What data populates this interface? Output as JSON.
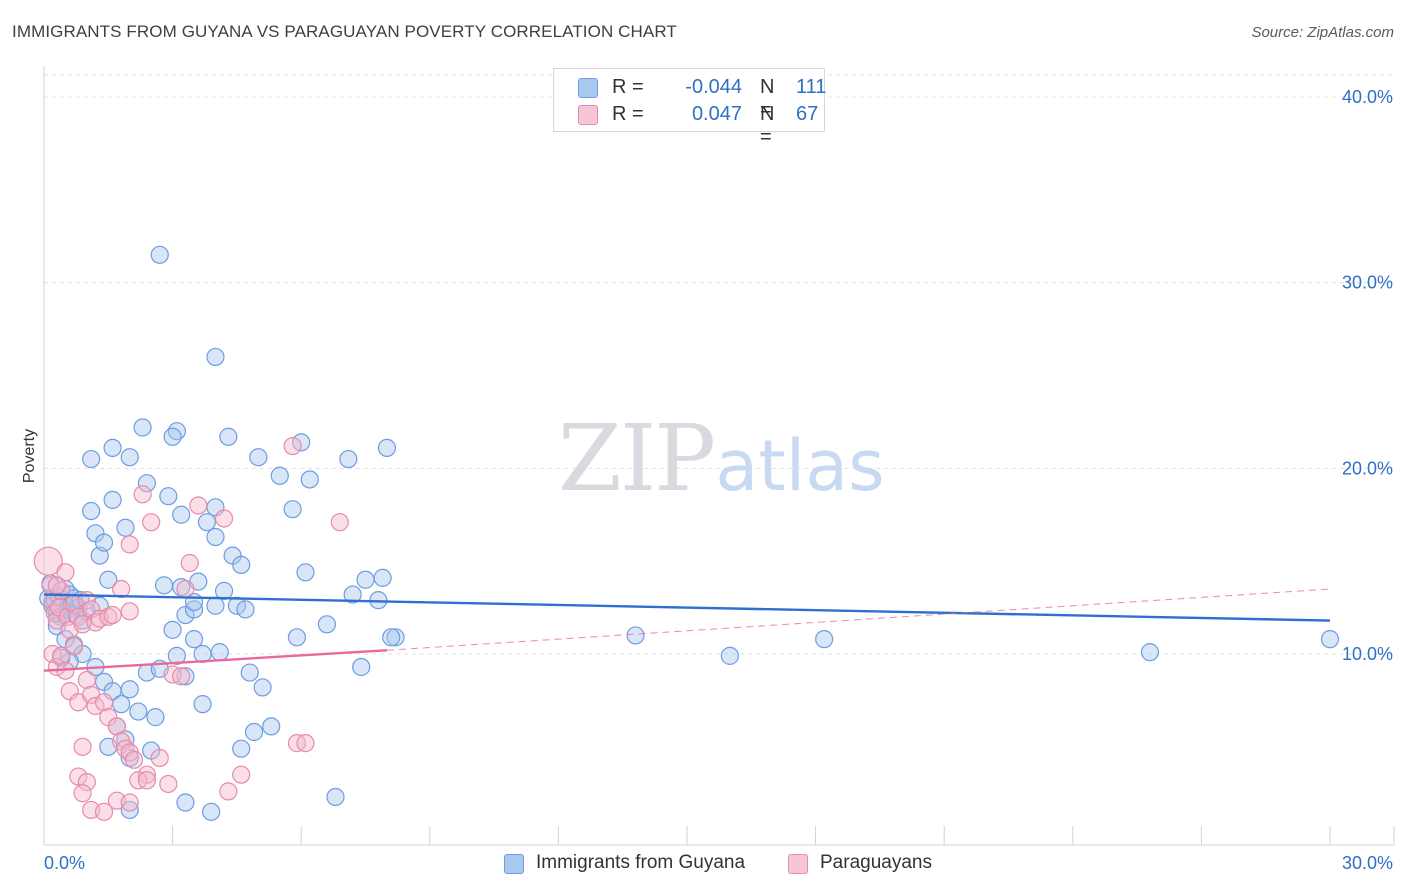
{
  "header": {
    "title": "IMMIGRANTS FROM GUYANA VS PARAGUAYAN POVERTY CORRELATION CHART",
    "source": "Source: ZipAtlas.com"
  },
  "watermark": {
    "zip": "ZIP",
    "atlas": "atlas"
  },
  "legend": {
    "rows": [
      {
        "r_label": "R =",
        "r_value": "-0.044",
        "n_label": "N =",
        "n_value": "111"
      },
      {
        "r_label": "R =",
        "r_value": "0.047",
        "n_label": "N =",
        "n_value": "67"
      }
    ]
  },
  "bottom_legend": {
    "items": [
      {
        "label": "Immigrants from Guyana"
      },
      {
        "label": "Paraguayans"
      }
    ]
  },
  "colors": {
    "blue_fill": "#a8c8f0",
    "blue_stroke": "#6d9de0",
    "blue_line": "#2f6fcf",
    "pink_fill": "#f5b9cc",
    "pink_stroke": "#e88aa8",
    "pink_line": "#e8699a",
    "grid": "#dde0e5",
    "axis_label": "#2f6fc6"
  },
  "chart_data": {
    "type": "scatter",
    "title": "IMMIGRANTS FROM GUYANA VS PARAGUAYAN POVERTY CORRELATION CHART",
    "xlabel": "",
    "ylabel": "Poverty",
    "xlim": [
      0,
      30
    ],
    "ylim": [
      0,
      42
    ],
    "x_tick_labels": [
      "0.0%",
      "30.0%"
    ],
    "y_ticks": [
      10,
      20,
      30,
      40
    ],
    "y_tick_labels": [
      "10.0%",
      "20.0%",
      "30.0%",
      "40.0%"
    ],
    "series": [
      {
        "name": "Immigrants from Guyana",
        "color": "#6d9de0",
        "trend": {
          "x": [
            0,
            30
          ],
          "y": [
            13.2,
            11.8
          ],
          "solid": true
        },
        "points": [
          [
            0.1,
            13.0
          ],
          [
            0.15,
            13.8
          ],
          [
            0.2,
            12.6
          ],
          [
            0.25,
            12.9
          ],
          [
            0.3,
            12.2
          ],
          [
            0.35,
            13.1
          ],
          [
            0.4,
            12.0
          ],
          [
            0.45,
            12.8
          ],
          [
            0.5,
            13.5
          ],
          [
            0.55,
            12.4
          ],
          [
            0.6,
            13.2
          ],
          [
            0.65,
            12.7
          ],
          [
            0.7,
            13.0
          ],
          [
            0.75,
            12.1
          ],
          [
            0.8,
            12.5
          ],
          [
            0.85,
            12.9
          ],
          [
            0.9,
            11.8
          ],
          [
            1.0,
            12.3
          ],
          [
            0.3,
            11.5
          ],
          [
            0.5,
            10.8
          ],
          [
            0.7,
            10.5
          ],
          [
            0.9,
            10.0
          ],
          [
            0.6,
            9.6
          ],
          [
            1.2,
            9.3
          ],
          [
            1.4,
            8.5
          ],
          [
            1.6,
            8.0
          ],
          [
            1.8,
            7.3
          ],
          [
            2.0,
            8.1
          ],
          [
            2.2,
            6.9
          ],
          [
            1.7,
            6.1
          ],
          [
            2.6,
            6.6
          ],
          [
            1.9,
            5.4
          ],
          [
            2.5,
            4.8
          ],
          [
            2.4,
            9.0
          ],
          [
            2.7,
            9.2
          ],
          [
            3.0,
            11.3
          ],
          [
            3.3,
            12.1
          ],
          [
            3.5,
            12.4
          ],
          [
            3.2,
            13.6
          ],
          [
            2.8,
            13.7
          ],
          [
            1.5,
            14.0
          ],
          [
            1.3,
            15.3
          ],
          [
            1.2,
            16.5
          ],
          [
            1.4,
            16.0
          ],
          [
            1.6,
            18.3
          ],
          [
            1.9,
            16.8
          ],
          [
            1.1,
            17.7
          ],
          [
            2.4,
            19.2
          ],
          [
            2.0,
            20.6
          ],
          [
            1.6,
            21.1
          ],
          [
            1.1,
            20.5
          ],
          [
            2.3,
            22.2
          ],
          [
            3.1,
            22.0
          ],
          [
            3.0,
            21.7
          ],
          [
            2.9,
            18.5
          ],
          [
            3.2,
            17.5
          ],
          [
            4.0,
            17.9
          ],
          [
            3.8,
            17.1
          ],
          [
            4.0,
            16.3
          ],
          [
            4.4,
            15.3
          ],
          [
            4.6,
            14.8
          ],
          [
            3.6,
            13.9
          ],
          [
            3.5,
            12.8
          ],
          [
            3.7,
            10.0
          ],
          [
            3.1,
            9.9
          ],
          [
            3.3,
            8.8
          ],
          [
            3.7,
            7.3
          ],
          [
            4.2,
            13.4
          ],
          [
            4.5,
            12.6
          ],
          [
            4.7,
            12.4
          ],
          [
            4.1,
            10.1
          ],
          [
            4.8,
            9.0
          ],
          [
            5.1,
            8.2
          ],
          [
            4.9,
            5.8
          ],
          [
            5.3,
            6.1
          ],
          [
            4.6,
            4.9
          ],
          [
            5.0,
            20.6
          ],
          [
            5.5,
            19.6
          ],
          [
            5.8,
            17.8
          ],
          [
            6.1,
            14.4
          ],
          [
            5.9,
            10.9
          ],
          [
            6.0,
            21.4
          ],
          [
            6.2,
            19.4
          ],
          [
            7.1,
            20.5
          ],
          [
            8.0,
            21.1
          ],
          [
            7.5,
            14.0
          ],
          [
            7.9,
            14.1
          ],
          [
            6.6,
            11.6
          ],
          [
            7.2,
            13.2
          ],
          [
            7.8,
            12.9
          ],
          [
            8.2,
            10.9
          ],
          [
            7.4,
            9.3
          ],
          [
            4.0,
            12.6
          ],
          [
            4.3,
            21.7
          ],
          [
            4.0,
            26.0
          ],
          [
            2.7,
            31.5
          ],
          [
            8.1,
            10.9
          ],
          [
            13.8,
            11.0
          ],
          [
            16.0,
            9.9
          ],
          [
            18.2,
            10.8
          ],
          [
            25.8,
            10.1
          ],
          [
            30.0,
            10.8
          ],
          [
            2.0,
            1.6
          ],
          [
            3.3,
            2.0
          ],
          [
            3.9,
            1.5
          ],
          [
            6.8,
            2.3
          ],
          [
            1.5,
            5.0
          ],
          [
            2.0,
            4.4
          ],
          [
            3.5,
            10.8
          ],
          [
            1.3,
            12.6
          ],
          [
            0.4,
            9.8
          ]
        ]
      },
      {
        "name": "Paraguayans",
        "color": "#e88aa8",
        "trend": {
          "x": [
            0,
            8.0
          ],
          "y": [
            9.1,
            10.2
          ],
          "solid": true,
          "dashed_extension": {
            "x": [
              8.0,
              30
            ],
            "y": [
              10.2,
              13.5
            ]
          }
        },
        "points": [
          [
            0.1,
            15.0
          ],
          [
            0.15,
            13.7
          ],
          [
            0.2,
            12.8
          ],
          [
            0.25,
            12.2
          ],
          [
            0.3,
            11.8
          ],
          [
            0.35,
            12.5
          ],
          [
            0.4,
            13.4
          ],
          [
            0.5,
            14.4
          ],
          [
            0.55,
            12.0
          ],
          [
            0.6,
            11.3
          ],
          [
            0.7,
            12.7
          ],
          [
            0.8,
            12.0
          ],
          [
            0.9,
            11.6
          ],
          [
            1.0,
            12.9
          ],
          [
            1.1,
            12.4
          ],
          [
            1.2,
            11.7
          ],
          [
            1.3,
            11.9
          ],
          [
            1.5,
            12.0
          ],
          [
            1.6,
            12.1
          ],
          [
            1.8,
            13.5
          ],
          [
            2.0,
            12.3
          ],
          [
            0.2,
            10.0
          ],
          [
            0.3,
            9.3
          ],
          [
            0.4,
            9.9
          ],
          [
            0.5,
            9.1
          ],
          [
            0.6,
            8.0
          ],
          [
            0.7,
            10.4
          ],
          [
            0.8,
            7.4
          ],
          [
            1.0,
            8.6
          ],
          [
            1.1,
            7.8
          ],
          [
            1.2,
            7.2
          ],
          [
            1.4,
            7.4
          ],
          [
            1.5,
            6.6
          ],
          [
            1.7,
            6.1
          ],
          [
            1.8,
            5.3
          ],
          [
            1.9,
            4.9
          ],
          [
            2.0,
            4.7
          ],
          [
            2.1,
            4.3
          ],
          [
            2.4,
            3.5
          ],
          [
            2.7,
            4.4
          ],
          [
            2.9,
            3.0
          ],
          [
            0.9,
            5.0
          ],
          [
            0.8,
            3.4
          ],
          [
            1.0,
            3.1
          ],
          [
            0.9,
            2.5
          ],
          [
            1.1,
            1.6
          ],
          [
            1.4,
            1.5
          ],
          [
            1.7,
            2.1
          ],
          [
            2.0,
            2.0
          ],
          [
            2.2,
            3.2
          ],
          [
            2.4,
            3.2
          ],
          [
            3.0,
            8.9
          ],
          [
            3.2,
            8.8
          ],
          [
            3.3,
            13.5
          ],
          [
            3.4,
            14.9
          ],
          [
            2.5,
            17.1
          ],
          [
            2.0,
            15.9
          ],
          [
            2.3,
            18.6
          ],
          [
            3.6,
            18.0
          ],
          [
            4.2,
            17.3
          ],
          [
            5.8,
            21.2
          ],
          [
            6.9,
            17.1
          ],
          [
            5.9,
            5.2
          ],
          [
            6.1,
            5.2
          ],
          [
            4.3,
            2.6
          ],
          [
            4.6,
            3.5
          ],
          [
            0.3,
            13.7
          ]
        ]
      }
    ]
  }
}
